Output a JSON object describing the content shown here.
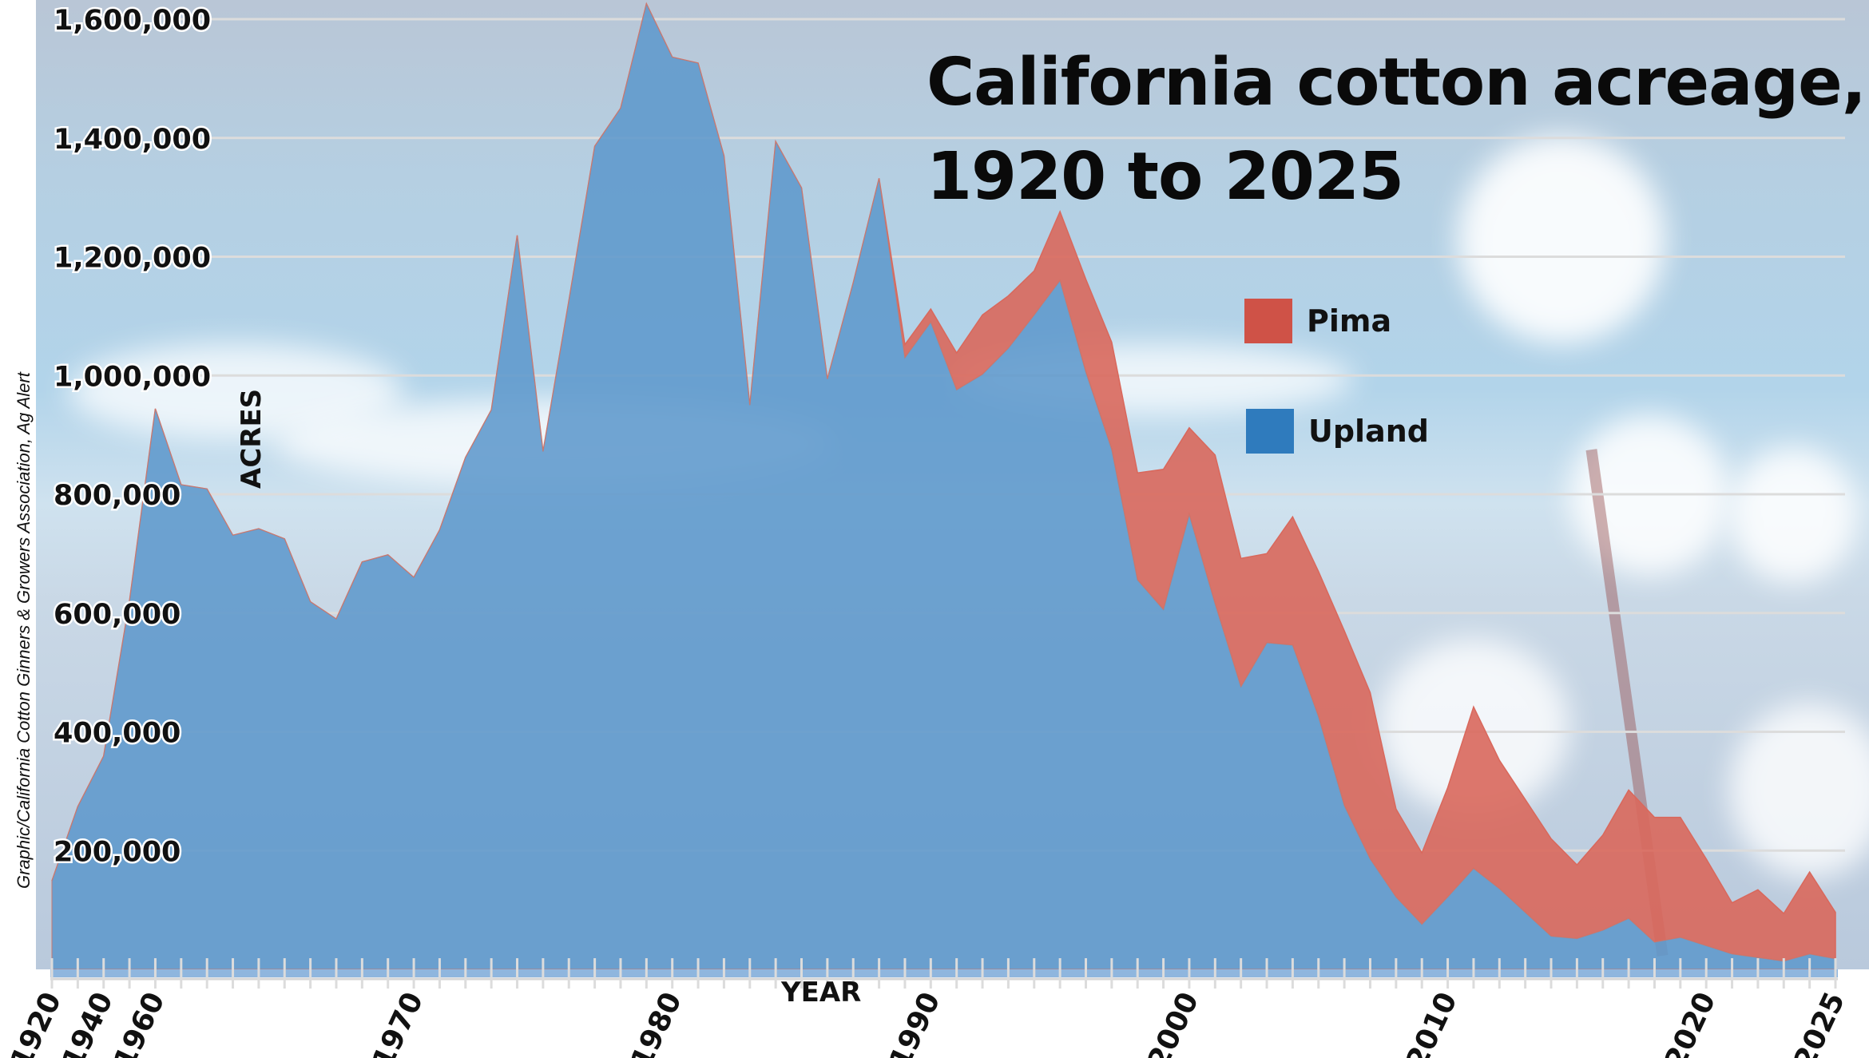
{
  "chart_data": {
    "type": "area",
    "stacked": true,
    "title": "California cotton acreage, 1920 to 2025",
    "xlabel": "YEAR",
    "ylabel": "ACRES",
    "ylim": [
      0,
      1600000
    ],
    "yticks": [
      200000,
      400000,
      600000,
      800000,
      1000000,
      1200000,
      1400000,
      1600000
    ],
    "ytick_labels": [
      "200,000",
      "400,000",
      "600,000",
      "800,000",
      "1,000,000",
      "1,200,000",
      "1,400,000",
      "1,600,000"
    ],
    "xtick_labels": [
      "1920",
      "1940",
      "1960",
      "1970",
      "1980",
      "1990",
      "2000",
      "2010",
      "2020",
      "2025"
    ],
    "grid": true,
    "legend_position": "top-right",
    "x": [
      1920,
      1930,
      1940,
      1950,
      1960,
      1961,
      1962,
      1963,
      1964,
      1965,
      1966,
      1967,
      1968,
      1969,
      1970,
      1971,
      1972,
      1973,
      1974,
      1975,
      1976,
      1977,
      1978,
      1979,
      1980,
      1981,
      1982,
      1983,
      1984,
      1985,
      1986,
      1987,
      1988,
      1989,
      1990,
      1991,
      1992,
      1993,
      1994,
      1995,
      1996,
      1997,
      1998,
      1999,
      2000,
      2001,
      2002,
      2003,
      2004,
      2005,
      2006,
      2007,
      2008,
      2009,
      2010,
      2011,
      2012,
      2013,
      2014,
      2015,
      2016,
      2017,
      2018,
      2019,
      2020,
      2021,
      2022,
      2023,
      2024,
      2025
    ],
    "series": [
      {
        "name": "Upland",
        "color": "#2f7bbd",
        "values": [
          149000,
          274000,
          359000,
          620000,
          944000,
          816000,
          809000,
          731000,
          742000,
          725000,
          619000,
          590000,
          686000,
          698000,
          660000,
          740000,
          862000,
          942000,
          1236000,
          872000,
          1126000,
          1386000,
          1450000,
          1626000,
          1536000,
          1526000,
          1370000,
          950000,
          1394000,
          1316000,
          994000,
          1156000,
          1332000,
          1030000,
          1090000,
          976000,
          1002000,
          1046000,
          1102000,
          1160000,
          1006000,
          876000,
          656000,
          606000,
          766000,
          616000,
          476000,
          550000,
          546000,
          426000,
          276000,
          186000,
          122000,
          76000,
          122000,
          170000,
          136000,
          96000,
          56000,
          52000,
          66000,
          86000,
          46000,
          54000,
          40000,
          26000,
          20000,
          14000,
          26000,
          18000
        ]
      },
      {
        "name": "Pima",
        "color": "#cf5247",
        "values": [
          0,
          0,
          0,
          0,
          0,
          0,
          0,
          0,
          0,
          0,
          0,
          0,
          0,
          0,
          0,
          0,
          0,
          0,
          0,
          0,
          0,
          0,
          0,
          0,
          0,
          0,
          0,
          0,
          0,
          0,
          0,
          0,
          0,
          22000,
          22000,
          62000,
          100000,
          88000,
          74000,
          116000,
          156000,
          180000,
          180000,
          236000,
          146000,
          250000,
          216000,
          150000,
          216000,
          244000,
          294000,
          280000,
          148000,
          120000,
          184000,
          272000,
          216000,
          190000,
          164000,
          124000,
          160000,
          216000,
          210000,
          202000,
          146000,
          86000,
          114000,
          80000,
          138000,
          78000
        ]
      }
    ]
  },
  "credit": "Graphic/California Cotton Ginners & Growers Association, Ag Alert",
  "colors": {
    "upland_fill": "#5e98cc",
    "pima_fill": "#d9685c"
  }
}
